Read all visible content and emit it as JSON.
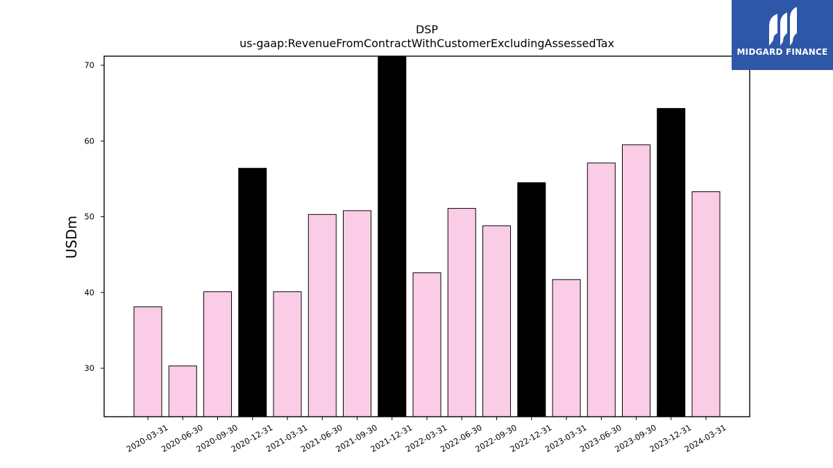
{
  "chart_data": {
    "type": "bar",
    "title": "DSP",
    "subtitle": "us-gaap:RevenueFromContractWithCustomerExcludingAssessedTax",
    "xlabel": "",
    "ylabel": "USDm",
    "ylim": [
      23.6,
      71.2
    ],
    "yticks": [
      30,
      40,
      50,
      60,
      70
    ],
    "grid": false,
    "categories": [
      "2020-03-31",
      "2020-06-30",
      "2020-09-30",
      "2020-12-31",
      "2021-03-31",
      "2021-06-30",
      "2021-09-30",
      "2021-12-31",
      "2022-03-31",
      "2022-06-30",
      "2022-09-30",
      "2022-12-31",
      "2023-03-31",
      "2023-06-30",
      "2023-09-30",
      "2023-12-31",
      "2024-03-31"
    ],
    "values": [
      38.1,
      30.3,
      40.1,
      56.4,
      40.1,
      50.3,
      50.8,
      71.2,
      42.6,
      51.1,
      48.8,
      54.5,
      41.7,
      57.1,
      59.5,
      64.3,
      53.3
    ],
    "bar_colors": [
      "#fbcce6",
      "#fbcce6",
      "#fbcce6",
      "#000000",
      "#fbcce6",
      "#fbcce6",
      "#fbcce6",
      "#000000",
      "#fbcce6",
      "#fbcce6",
      "#fbcce6",
      "#000000",
      "#fbcce6",
      "#fbcce6",
      "#fbcce6",
      "#000000",
      "#fbcce6"
    ],
    "colors": {
      "quarter": "#fbcce6",
      "year_end": "#000000",
      "edge": "#000000"
    }
  },
  "logo": {
    "text": "MIDGARD FINANCE",
    "background": "#2f57a8",
    "icon": "midgard-logo-icon"
  }
}
